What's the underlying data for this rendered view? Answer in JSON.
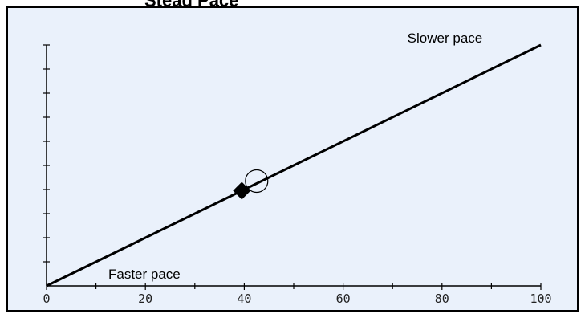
{
  "page": {
    "title_partial": "Stead Pace"
  },
  "colors": {
    "panel_background": "#eaf1fb",
    "border": "#000000",
    "line": "#000000",
    "text": "#000000"
  },
  "chart_data": {
    "type": "line",
    "title": "",
    "xlabel": "",
    "ylabel": "",
    "xlim": [
      0,
      100
    ],
    "ylim": [
      0,
      10
    ],
    "x_major_ticks": [
      0,
      20,
      40,
      60,
      80,
      100
    ],
    "x_tick_labels": [
      "0",
      "20",
      "40",
      "60",
      "80",
      "100"
    ],
    "x_minor_ticks": [
      10,
      30,
      50,
      70,
      90
    ],
    "y_ticks": [
      1,
      2,
      3,
      4,
      5,
      6,
      7,
      8,
      9,
      10
    ],
    "y_tick_labels_visible": false,
    "grid": false,
    "series": [
      {
        "x": [
          0,
          100
        ],
        "y": [
          0,
          10
        ]
      }
    ],
    "markers": [
      {
        "shape": "filled-diamond",
        "x": 39.5,
        "y": 3.95
      },
      {
        "shape": "open-circle",
        "x": 42.5,
        "y": 4.35
      }
    ],
    "annotations": [
      {
        "text": "Slower pace",
        "x": 73,
        "y": 10.1
      },
      {
        "text": "Faster pace",
        "x": 12.5,
        "y": 0.3
      }
    ]
  }
}
